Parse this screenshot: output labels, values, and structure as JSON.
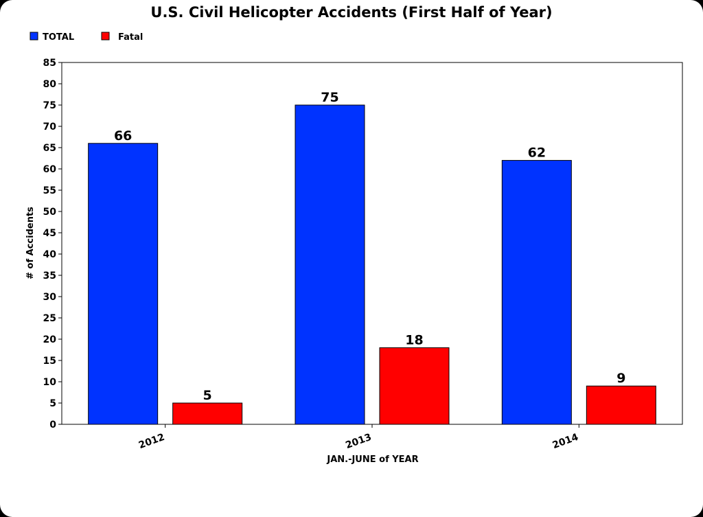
{
  "chart_data": {
    "type": "bar",
    "title": "U.S. Civil Helicopter Accidents  (First Half of Year)",
    "xlabel": "JAN.-JUNE of YEAR",
    "ylabel": "# of Accidents",
    "categories": [
      "2012",
      "2013",
      "2014"
    ],
    "series": [
      {
        "name": "TOTAL",
        "color": "#0033ff",
        "values": [
          66,
          75,
          62
        ]
      },
      {
        "name": "Fatal",
        "color": "#ff0000",
        "values": [
          5,
          18,
          9
        ]
      }
    ],
    "ylim": [
      0,
      85
    ],
    "yticks": [
      0,
      5,
      10,
      15,
      20,
      25,
      30,
      35,
      40,
      45,
      50,
      55,
      60,
      65,
      70,
      75,
      80,
      85
    ],
    "grid": false,
    "legend": "top-left",
    "data_labels": true
  }
}
